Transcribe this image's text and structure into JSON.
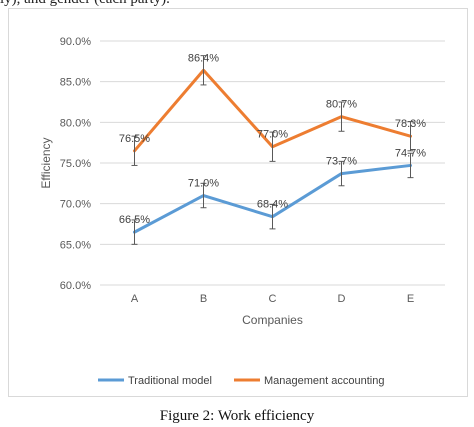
{
  "header_fragment": "ly), and gender (each party).",
  "caption": "Figure 2: Work efficiency",
  "chart_data": {
    "type": "line",
    "categories": [
      "A",
      "B",
      "C",
      "D",
      "E"
    ],
    "xlabel": "Companies",
    "ylabel": "Efficiency",
    "ylim": [
      60.0,
      90.0
    ],
    "yticks": [
      60.0,
      65.0,
      70.0,
      75.0,
      80.0,
      85.0,
      90.0
    ],
    "ytick_labels": [
      "60.0%",
      "65.0%",
      "70.0%",
      "75.0%",
      "80.0%",
      "85.0%",
      "90.0%"
    ],
    "grid": "horizontal",
    "legend_position": "bottom",
    "series": [
      {
        "name": "Traditional model",
        "color": "#5b9bd5",
        "values": [
          66.5,
          71.0,
          68.4,
          73.7,
          74.7
        ],
        "labels": [
          "66.5%",
          "71.0%",
          "68.4%",
          "73.7%",
          "74.7%"
        ],
        "error": 1.5
      },
      {
        "name": "Management accounting",
        "color": "#ed7d31",
        "values": [
          76.5,
          86.4,
          77.0,
          80.7,
          78.3
        ],
        "labels": [
          "76.5%",
          "86.4%",
          "77.0%",
          "80.7%",
          "78.3%"
        ],
        "error": 1.8
      }
    ]
  }
}
